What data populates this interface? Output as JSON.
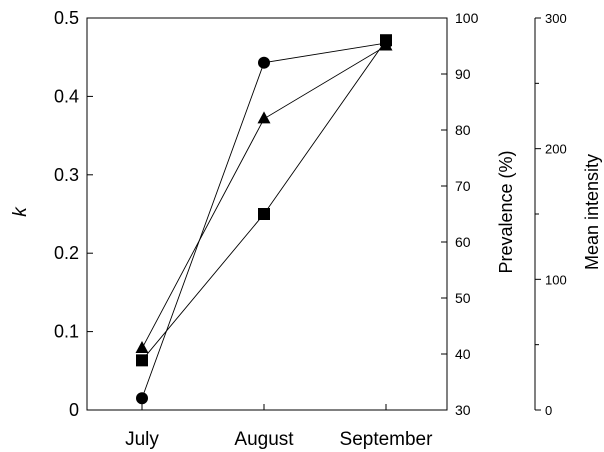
{
  "chart_data": {
    "type": "line",
    "categories": [
      "July",
      "August",
      "September"
    ],
    "axes": {
      "k": {
        "label": "k",
        "ylim": [
          0,
          0.5
        ],
        "ticks": [
          0,
          0.1,
          0.2,
          0.3,
          0.4,
          0.5
        ],
        "tick_labels": [
          "0",
          "0.1",
          "0.2",
          "0.3",
          "0.4",
          "0.5"
        ]
      },
      "prevalence": {
        "label": "Prevalence (%)",
        "ylim": [
          30,
          100
        ],
        "ticks": [
          30,
          40,
          50,
          60,
          70,
          80,
          90,
          100
        ],
        "tick_labels": [
          "30",
          "40",
          "50",
          "60",
          "70",
          "80",
          "90",
          "100"
        ]
      },
      "mean_intensity": {
        "label": "Mean intensity",
        "ylim": [
          0,
          300
        ],
        "ticks": [
          0,
          100,
          200,
          300
        ],
        "tick_labels": [
          "0",
          "100",
          "200",
          "300"
        ]
      }
    },
    "series": [
      {
        "marker": "circle",
        "axis": "k",
        "values": [
          0.015,
          0.443,
          0.468
        ]
      },
      {
        "marker": "triangle",
        "axis": "prevalence",
        "values": [
          41,
          82,
          95
        ]
      },
      {
        "marker": "square",
        "axis": "mean_intensity",
        "values": [
          38,
          150,
          283
        ]
      }
    ],
    "grid": false,
    "legend": "none"
  }
}
